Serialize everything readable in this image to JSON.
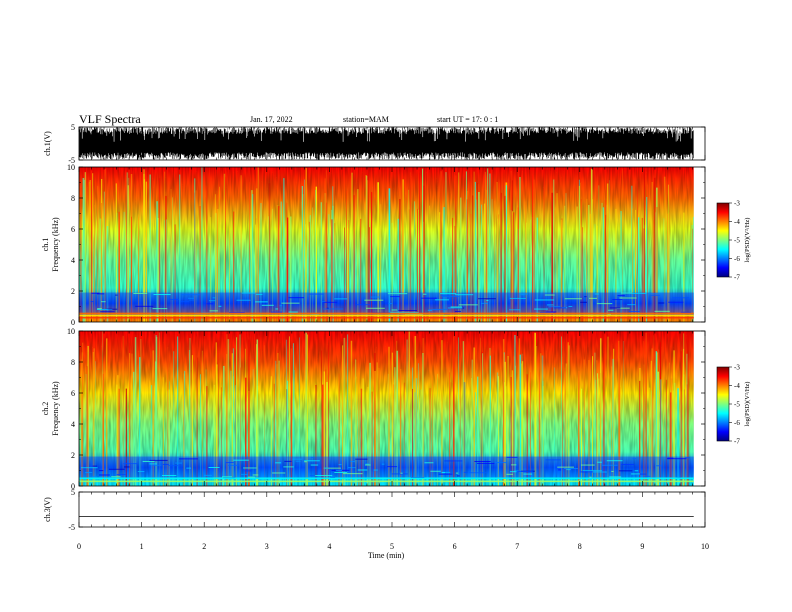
{
  "header": {
    "title": "VLF Spectra",
    "date": "Jan. 17, 2022",
    "station": "station=MAM",
    "start": "start UT =  17: 0  : 1"
  },
  "chart_data": [
    {
      "type": "line",
      "panel": "waveform",
      "ylabel": "ch.1(V)",
      "ylim": [
        -5,
        5
      ],
      "yticks": [
        -5,
        5
      ],
      "xlim": [
        0,
        10
      ],
      "signal": "dense oscillating trace spanning nearly the full range from about -5 to 5 V, ending near 9.8 min"
    },
    {
      "type": "heatmap",
      "panel": "spectrogram",
      "ylabel": "ch.1 Frequency (kHz)",
      "ylim": [
        0,
        10
      ],
      "yticks": [
        0,
        2,
        4,
        6,
        8,
        10
      ],
      "xlim": [
        0,
        10
      ],
      "colorbar": {
        "label": "log(PSD)(V²/Hz)",
        "range": [
          -7,
          -3
        ],
        "ticks": [
          -3,
          -4,
          -5,
          -6,
          -7
        ],
        "colormap": "jet"
      },
      "profile": [
        {
          "freq_khz": 0.5,
          "log_psd": -4.0
        },
        {
          "freq_khz": 1.2,
          "log_psd": -6.2
        },
        {
          "freq_khz": 2.2,
          "log_psd": -5.3
        },
        {
          "freq_khz": 4.0,
          "log_psd": -5.1
        },
        {
          "freq_khz": 6.0,
          "log_psd": -4.6
        },
        {
          "freq_khz": 8.0,
          "log_psd": -3.9
        },
        {
          "freq_khz": 10.0,
          "log_psd": -3.5
        }
      ]
    },
    {
      "type": "heatmap",
      "panel": "spectrogram",
      "ylabel": "ch.2 Frequency (kHz)",
      "ylim": [
        0,
        10
      ],
      "yticks": [
        0,
        2,
        4,
        6,
        8,
        10
      ],
      "xlim": [
        0,
        10
      ],
      "colorbar": {
        "label": "log(PSD)(V²/Hz)",
        "range": [
          -7,
          -3
        ],
        "ticks": [
          -3,
          -4,
          -5,
          -6,
          -7
        ],
        "colormap": "jet"
      },
      "profile": [
        {
          "freq_khz": 0.5,
          "log_psd": -5.6
        },
        {
          "freq_khz": 1.2,
          "log_psd": -6.1
        },
        {
          "freq_khz": 2.2,
          "log_psd": -5.2
        },
        {
          "freq_khz": 4.0,
          "log_psd": -5.0
        },
        {
          "freq_khz": 6.0,
          "log_psd": -4.4
        },
        {
          "freq_khz": 8.0,
          "log_psd": -3.8
        },
        {
          "freq_khz": 10.0,
          "log_psd": -3.5
        }
      ]
    },
    {
      "type": "line",
      "panel": "waveform",
      "ylabel": "ch.3(V)",
      "ylim": [
        -5,
        5
      ],
      "yticks": [
        -5,
        5
      ],
      "xlim": [
        0,
        10
      ],
      "signal": "flat line at about -2 V"
    }
  ],
  "x_axis": {
    "label": "Time (min)",
    "ticks": [
      0,
      1,
      2,
      3,
      4,
      5,
      6,
      7,
      8,
      9,
      10
    ]
  },
  "colors": {
    "trace": "#000000",
    "axes": "#000000",
    "colormap": [
      "#00007f",
      "#0000ff",
      "#007fff",
      "#00ffff",
      "#7fff7f",
      "#ffff00",
      "#ff7f00",
      "#ff0000",
      "#7f0000"
    ]
  }
}
